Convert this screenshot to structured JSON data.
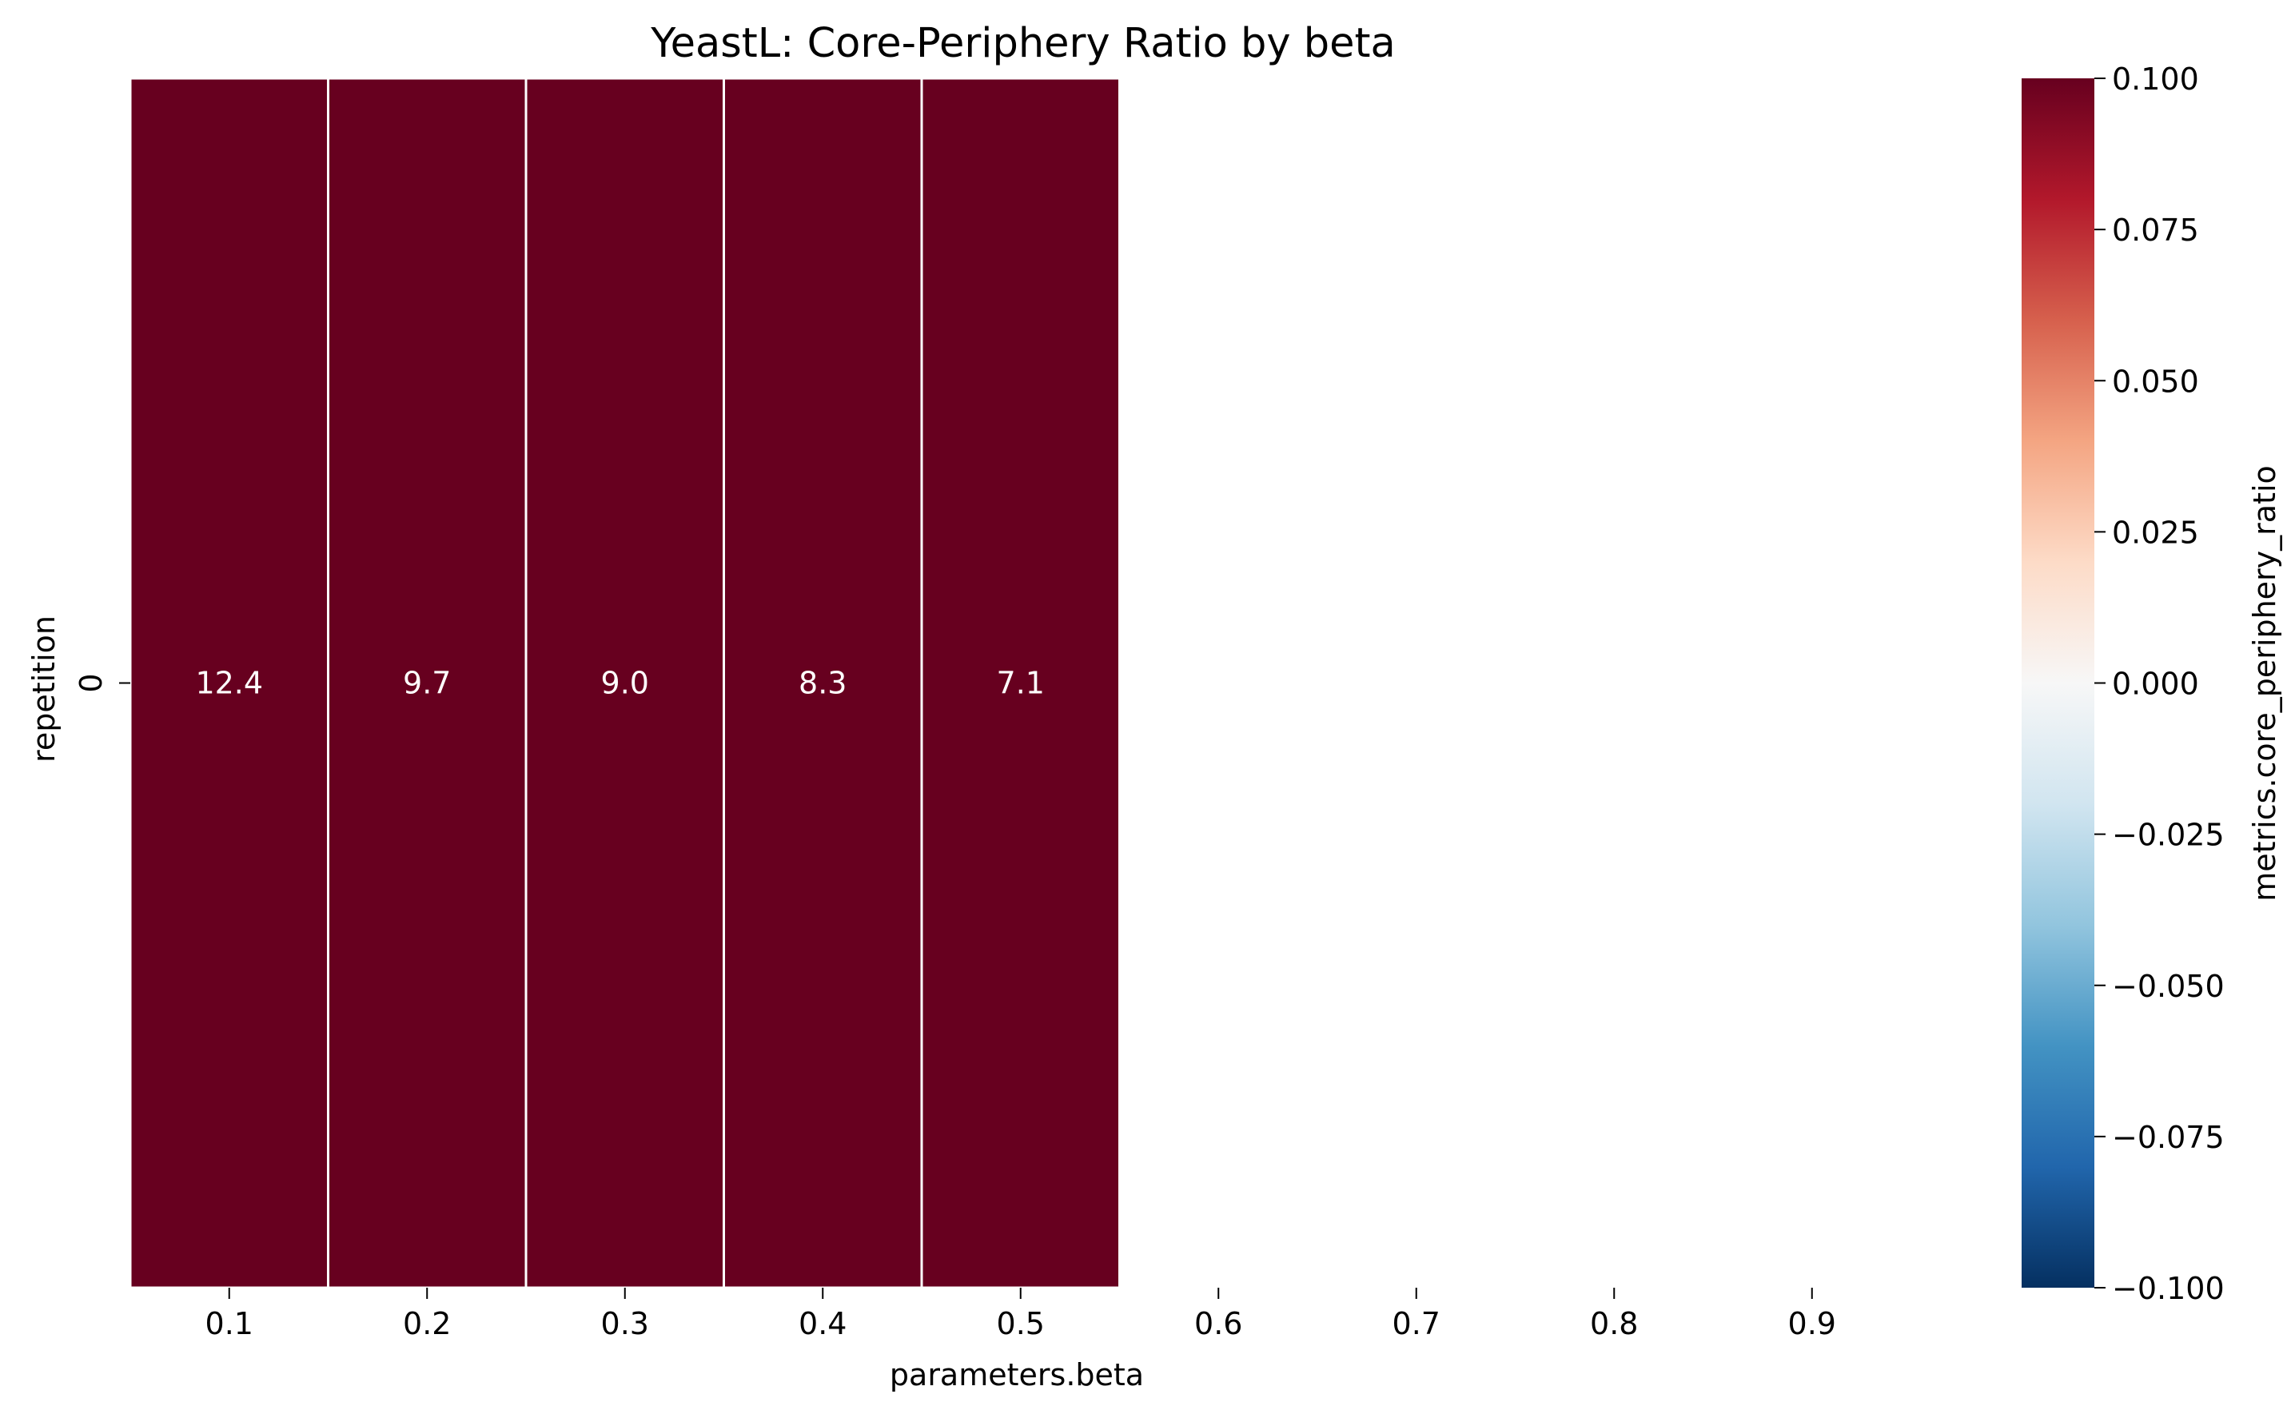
{
  "chart_data": {
    "type": "heatmap",
    "title": "YeastL: Core-Periphery Ratio by beta",
    "xlabel": "parameters.beta",
    "ylabel": "repetition",
    "x_categories": [
      "0.1",
      "0.2",
      "0.3",
      "0.4",
      "0.5",
      "0.6",
      "0.7",
      "0.8",
      "0.9"
    ],
    "y_categories": [
      "0"
    ],
    "values": [
      [
        12.4,
        9.7,
        9.0,
        8.3,
        7.1,
        null,
        null,
        null,
        null
      ]
    ],
    "cell_labels": [
      [
        "12.4",
        "9.7",
        "9.0",
        "8.3",
        "7.1",
        "",
        "",
        "",
        ""
      ]
    ],
    "colorbar": {
      "label": "metrics.core_periphery_ratio",
      "range": [
        -0.1,
        0.1
      ],
      "ticks": [
        "0.100",
        "0.075",
        "0.050",
        "0.025",
        "0.000",
        "−0.025",
        "−0.050",
        "−0.075",
        "−0.100"
      ],
      "colormap": "RdBu_r",
      "colors": [
        "#67001f",
        "#b2182b",
        "#d6604d",
        "#f4a582",
        "#fddbc7",
        "#f7f7f7",
        "#d1e5f0",
        "#92c5de",
        "#4393c3",
        "#2166ac",
        "#053061"
      ]
    },
    "cell_color": "#67001f",
    "cell_border_color": "#ffffff",
    "grid": false
  }
}
